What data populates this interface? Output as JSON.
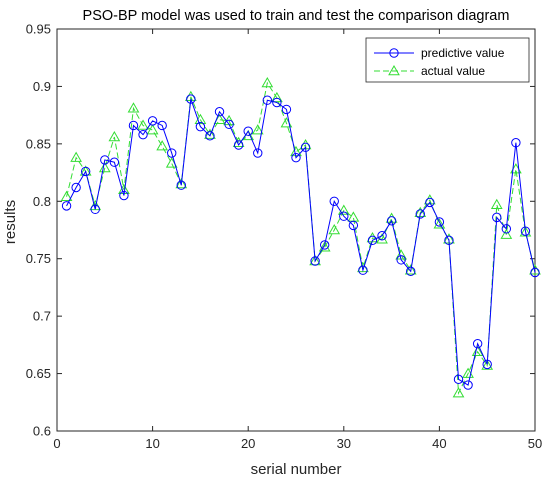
{
  "chart_data": {
    "type": "line",
    "title": "PSO-BP model was used to train and test the comparison diagram",
    "xlabel": "serial number",
    "ylabel": "results",
    "xlim": [
      0,
      50
    ],
    "ylim": [
      0.6,
      0.95
    ],
    "xticks": [
      0,
      10,
      20,
      30,
      40,
      50
    ],
    "yticks": [
      0.6,
      0.65,
      0.7,
      0.75,
      0.8,
      0.85,
      0.9,
      0.95
    ],
    "grid": false,
    "legend_position": "top-right",
    "x": [
      1,
      2,
      3,
      4,
      5,
      6,
      7,
      8,
      9,
      10,
      11,
      12,
      13,
      14,
      15,
      16,
      17,
      18,
      19,
      20,
      21,
      22,
      23,
      24,
      25,
      26,
      27,
      28,
      29,
      30,
      31,
      32,
      33,
      34,
      35,
      36,
      37,
      38,
      39,
      40,
      41,
      42,
      43,
      44,
      45,
      46,
      47,
      48,
      49,
      50
    ],
    "series": [
      {
        "name": "predictive value",
        "color": "#0000ff",
        "line_style": "solid",
        "marker": "circle",
        "values": [
          0.796,
          0.812,
          0.826,
          0.793,
          0.836,
          0.834,
          0.805,
          0.866,
          0.858,
          0.87,
          0.866,
          0.842,
          0.814,
          0.889,
          0.865,
          0.857,
          0.878,
          0.867,
          0.849,
          0.861,
          0.842,
          0.888,
          0.886,
          0.88,
          0.838,
          0.847,
          0.748,
          0.762,
          0.8,
          0.787,
          0.779,
          0.74,
          0.766,
          0.77,
          0.783,
          0.749,
          0.739,
          0.789,
          0.799,
          0.782,
          0.766,
          0.645,
          0.64,
          0.676,
          0.658,
          0.786,
          0.776,
          0.851,
          0.774,
          0.738
        ]
      },
      {
        "name": "actual value",
        "color": "#33dd33",
        "line_style": "dashed",
        "marker": "triangle",
        "values": [
          0.804,
          0.838,
          0.826,
          0.796,
          0.829,
          0.856,
          0.81,
          0.881,
          0.866,
          0.862,
          0.848,
          0.833,
          0.815,
          0.891,
          0.871,
          0.858,
          0.871,
          0.87,
          0.851,
          0.857,
          0.862,
          0.903,
          0.89,
          0.868,
          0.843,
          0.849,
          0.748,
          0.76,
          0.775,
          0.792,
          0.786,
          0.742,
          0.768,
          0.767,
          0.785,
          0.753,
          0.74,
          0.79,
          0.801,
          0.78,
          0.767,
          0.633,
          0.65,
          0.669,
          0.657,
          0.797,
          0.771,
          0.828,
          0.773,
          0.74
        ]
      }
    ]
  }
}
